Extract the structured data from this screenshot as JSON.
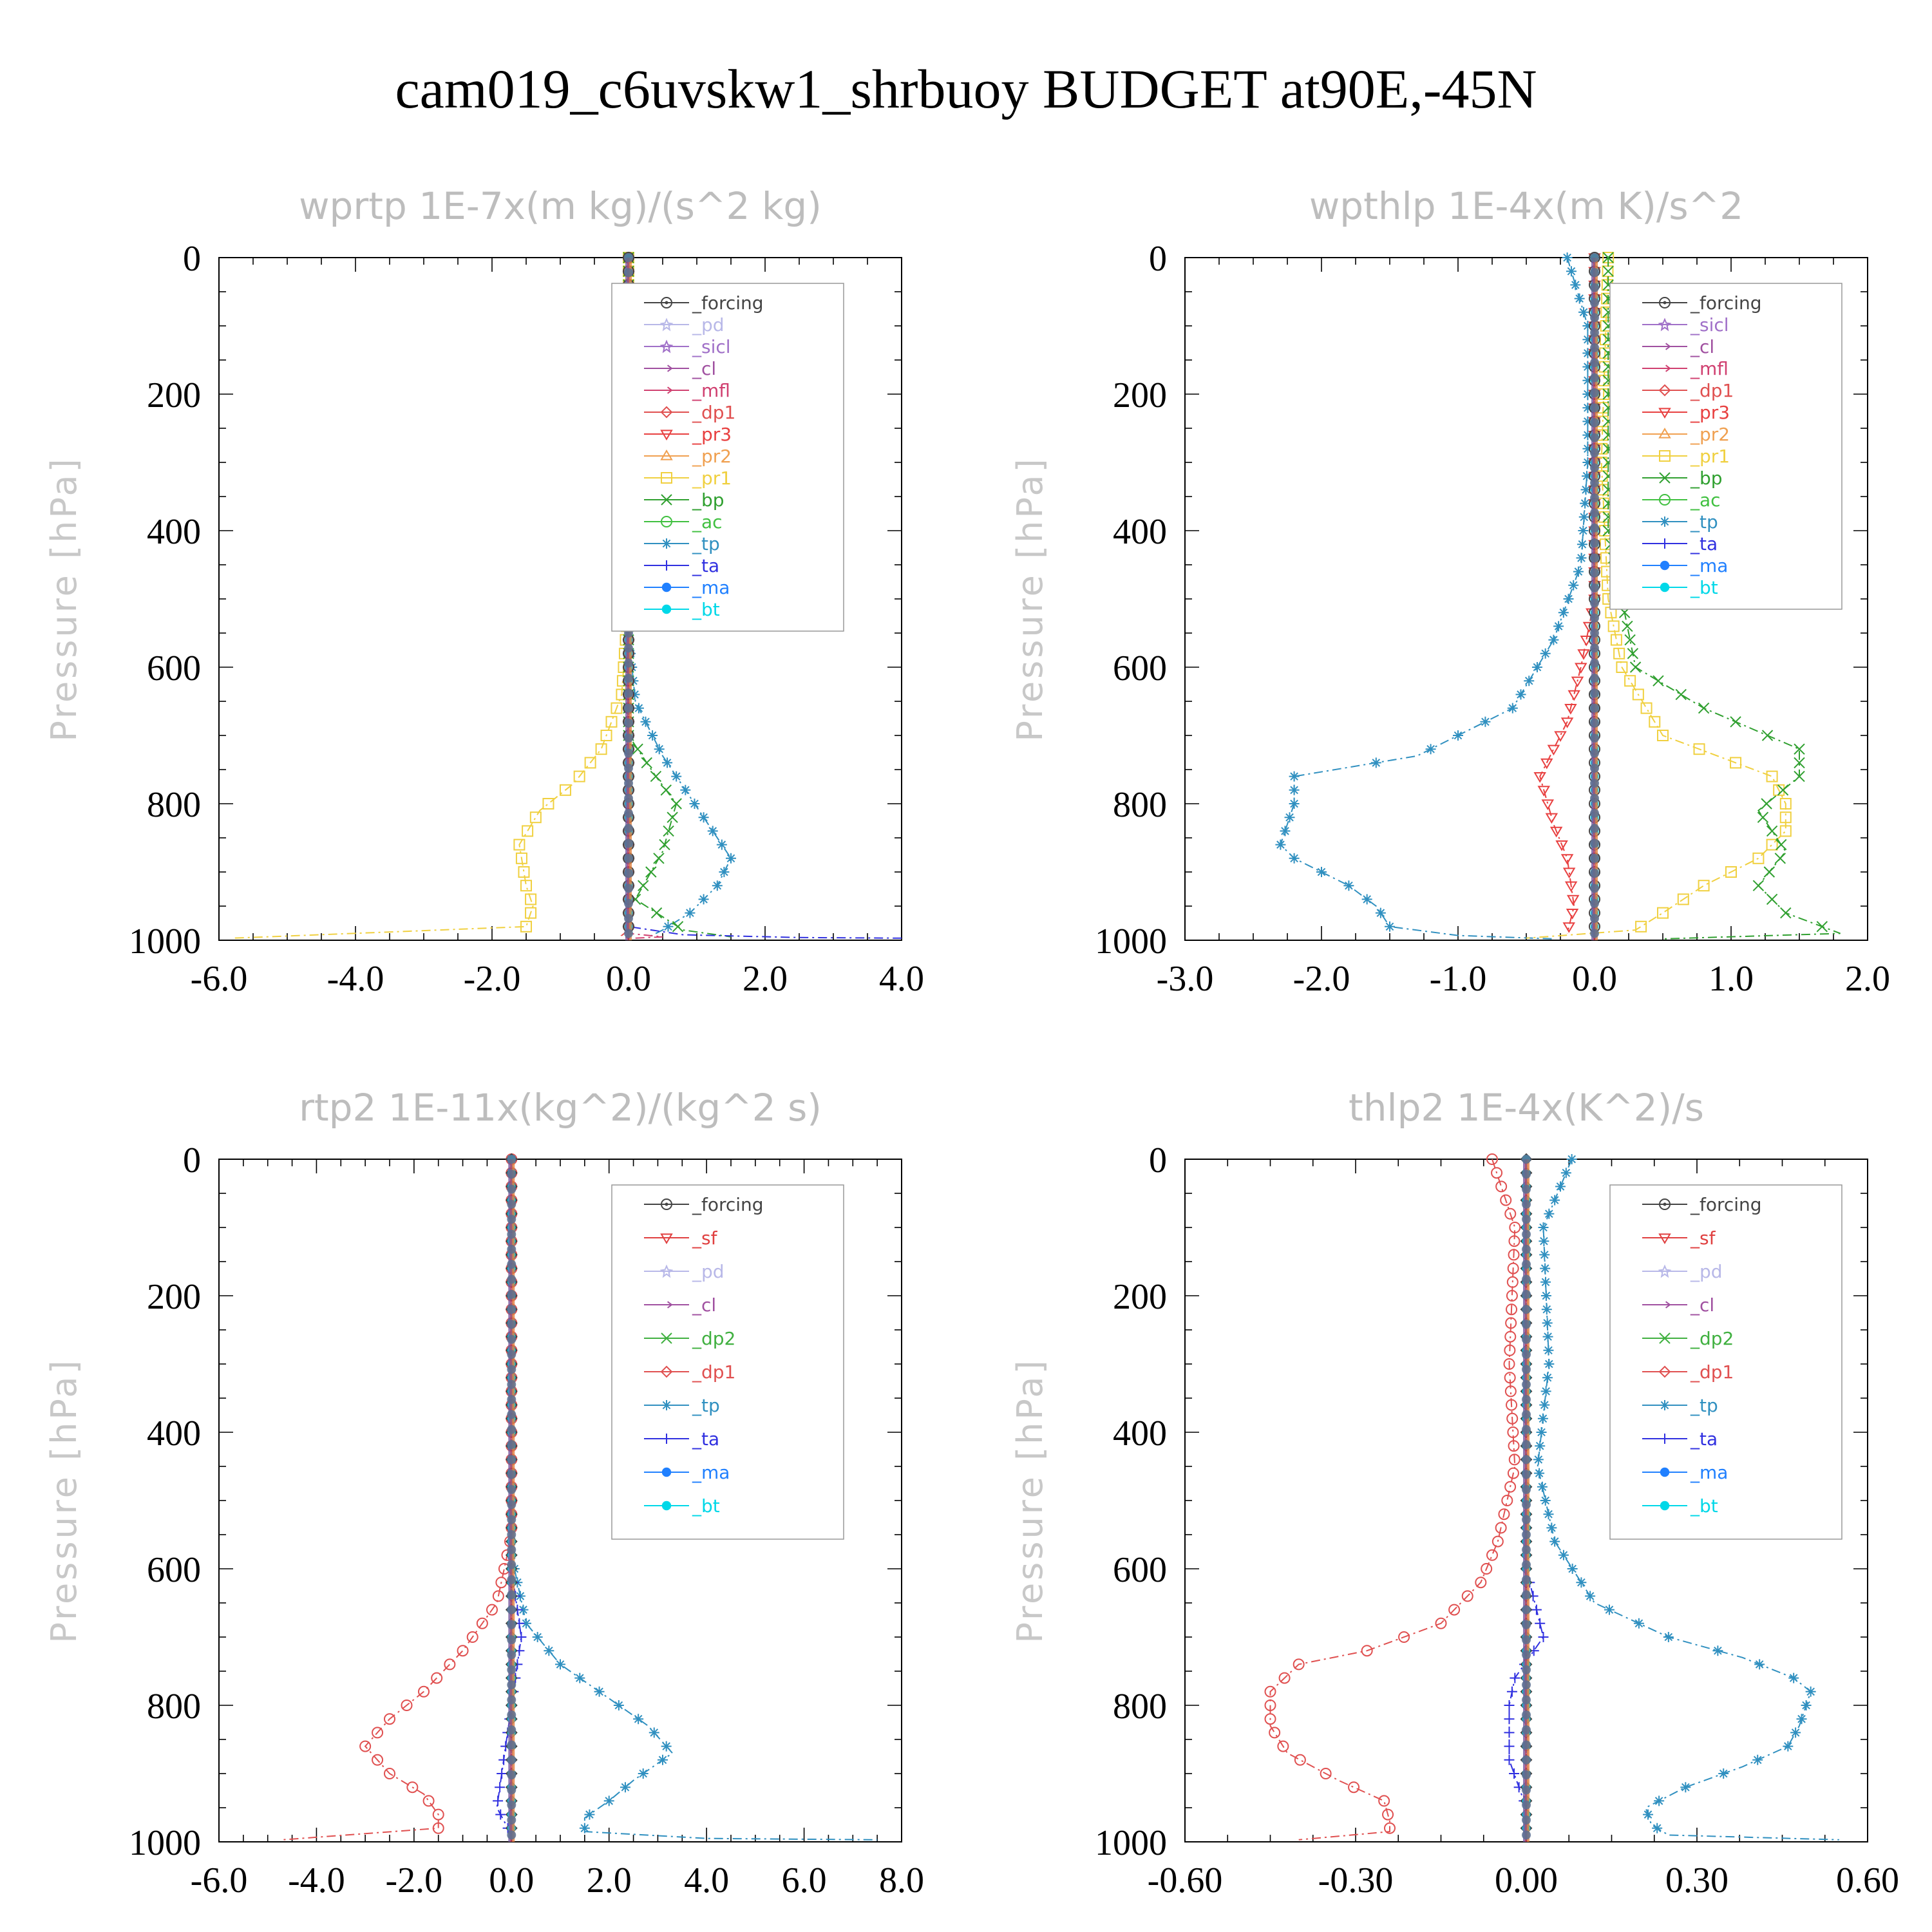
{
  "title": "cam019_c6uvskw1_shrbuoy  BUDGET at90E,-45N",
  "colors": {
    "_forcing": "#444444",
    "_pd": "#b8b8e8",
    "_sicl": "#a070c8",
    "_cl": "#a050a0",
    "_mfl": "#d04070",
    "_dp1": "#e05050",
    "_pr3": "#e84040",
    "_pr2": "#f0a050",
    "_pr1": "#f0d040",
    "_bp": "#30a030",
    "_ac": "#40c040",
    "_tp": "#3090c0",
    "_ta": "#3030e0",
    "_ma": "#2080ff",
    "_bt": "#00d8e8",
    "_sf": "#e04040",
    "_dp2": "#40b040"
  },
  "chart_data": [
    {
      "type": "line",
      "title": "wprtp  1E-7x(m kg)/(s^2 kg)",
      "xlabel": "",
      "ylabel": "Pressure [hPa]",
      "xlim": [
        -6.0,
        4.0
      ],
      "ylim": [
        1000,
        0
      ],
      "xticks": [
        "-6.0",
        "-4.0",
        "-2.0",
        "0.0",
        "2.0",
        "4.0"
      ],
      "yticks": [
        "0",
        "200",
        "400",
        "600",
        "800",
        "1000"
      ],
      "legend_position": "top-right",
      "legend": [
        "_forcing",
        "_pd",
        "_sicl",
        "_cl",
        "_mfl",
        "_dp1",
        "_pr3",
        "_pr2",
        "_pr1",
        "_bp",
        "_ac",
        "_tp",
        "_ta",
        "_ma",
        "_bt"
      ],
      "series": [
        {
          "name": "_pr1",
          "marker": "square",
          "points": [
            [
              0,
              0
            ],
            [
              0,
              500
            ],
            [
              -0.1,
              640
            ],
            [
              -0.4,
              720
            ],
            [
              -0.8,
              770
            ],
            [
              -1.3,
              810
            ],
            [
              -1.6,
              860
            ],
            [
              -1.5,
              920
            ],
            [
              -1.4,
              950
            ],
            [
              -1.5,
              980
            ],
            [
              -5.8,
              997
            ]
          ]
        },
        {
          "name": "_tp",
          "marker": "asterisk",
          "points": [
            [
              0,
              0
            ],
            [
              0,
              550
            ],
            [
              0.1,
              650
            ],
            [
              0.5,
              730
            ],
            [
              1.1,
              820
            ],
            [
              1.5,
              880
            ],
            [
              1.3,
              920
            ],
            [
              0.9,
              960
            ],
            [
              0.5,
              985
            ],
            [
              0.3,
              995
            ]
          ]
        },
        {
          "name": "_bp",
          "marker": "x",
          "points": [
            [
              0,
              0
            ],
            [
              0,
              700
            ],
            [
              0.4,
              760
            ],
            [
              0.7,
              800
            ],
            [
              0.5,
              870
            ],
            [
              0.1,
              940
            ],
            [
              0.8,
              985
            ],
            [
              1.5,
              995
            ]
          ]
        },
        {
          "name": "_ta",
          "marker": "plus",
          "points": [
            [
              0,
              0
            ],
            [
              0,
              980
            ],
            [
              0.8,
              992
            ],
            [
              2.5,
              996
            ],
            [
              4.0,
              997
            ]
          ]
        },
        {
          "name": "_mfl",
          "marker": "arrow",
          "points": [
            [
              0,
              0
            ],
            [
              0,
              990
            ],
            [
              0.5,
              995
            ],
            [
              0.1,
              997
            ]
          ]
        },
        {
          "name": "_dp1",
          "marker": "diamond",
          "points": [
            [
              0,
              0
            ],
            [
              0,
              985
            ],
            [
              -0.1,
              993
            ],
            [
              0,
              997
            ]
          ]
        },
        {
          "name": "_forcing",
          "marker": "circle-dot",
          "points": [
            [
              0,
              0
            ],
            [
              0,
              997
            ]
          ]
        },
        {
          "name": "_bt",
          "marker": "dot",
          "points": [
            [
              0,
              0
            ],
            [
              0,
              997
            ]
          ]
        }
      ]
    },
    {
      "type": "line",
      "title": "wpthlp  1E-4x(m K)/s^2",
      "xlabel": "",
      "ylabel": "Pressure [hPa]",
      "xlim": [
        -3.0,
        2.0
      ],
      "ylim": [
        1000,
        0
      ],
      "xticks": [
        "-3.0",
        "-2.0",
        "-1.0",
        "0.0",
        "1.0",
        "2.0"
      ],
      "yticks": [
        "0",
        "200",
        "400",
        "600",
        "800",
        "1000"
      ],
      "legend_position": "top-right",
      "legend": [
        "_forcing",
        "_sicl",
        "_cl",
        "_mfl",
        "_dp1",
        "_pr3",
        "_pr2",
        "_pr1",
        "_bp",
        "_ac",
        "_tp",
        "_ta",
        "_ma",
        "_bt"
      ],
      "series": [
        {
          "name": "_tp",
          "marker": "asterisk",
          "points": [
            [
              -0.2,
              0
            ],
            [
              -0.05,
              100
            ],
            [
              -0.05,
              300
            ],
            [
              -0.1,
              450
            ],
            [
              -0.3,
              560
            ],
            [
              -0.6,
              660
            ],
            [
              -1.3,
              730
            ],
            [
              -2.2,
              760
            ],
            [
              -2.2,
              800
            ],
            [
              -2.3,
              860
            ],
            [
              -2.2,
              880
            ],
            [
              -1.8,
              920
            ],
            [
              -1.6,
              950
            ],
            [
              -1.5,
              980
            ],
            [
              -1.0,
              993
            ],
            [
              -0.3,
              998
            ]
          ]
        },
        {
          "name": "_pr3",
          "marker": "triangle-down",
          "points": [
            [
              0,
              0
            ],
            [
              0,
              500
            ],
            [
              -0.1,
              600
            ],
            [
              -0.2,
              680
            ],
            [
              -0.4,
              760
            ],
            [
              -0.3,
              830
            ],
            [
              -0.2,
              880
            ],
            [
              -0.15,
              950
            ],
            [
              -0.2,
              990
            ]
          ]
        },
        {
          "name": "_pr1",
          "marker": "square",
          "points": [
            [
              0.1,
              0
            ],
            [
              0.05,
              300
            ],
            [
              0.1,
              500
            ],
            [
              0.2,
              600
            ],
            [
              0.5,
              700
            ],
            [
              1.3,
              760
            ],
            [
              1.4,
              800
            ],
            [
              1.4,
              840
            ],
            [
              1.2,
              880
            ],
            [
              0.8,
              920
            ],
            [
              0.5,
              960
            ],
            [
              0.3,
              985
            ],
            [
              -0.5,
              997
            ]
          ]
        },
        {
          "name": "_bp",
          "marker": "x",
          "points": [
            [
              0.1,
              0
            ],
            [
              0.1,
              400
            ],
            [
              0.3,
              600
            ],
            [
              0.8,
              660
            ],
            [
              1.5,
              720
            ],
            [
              1.5,
              760
            ],
            [
              1.2,
              810
            ],
            [
              1.4,
              870
            ],
            [
              1.2,
              920
            ],
            [
              1.4,
              960
            ],
            [
              1.8,
              990
            ],
            [
              0.5,
              998
            ]
          ]
        },
        {
          "name": "_forcing",
          "marker": "circle-dot",
          "points": [
            [
              0,
              0
            ],
            [
              0,
              997
            ]
          ]
        },
        {
          "name": "_bt",
          "marker": "dot",
          "points": [
            [
              0,
              0
            ],
            [
              0,
              997
            ]
          ]
        }
      ]
    },
    {
      "type": "line",
      "title": "rtp2  1E-11x(kg^2)/(kg^2 s)",
      "xlabel": "",
      "ylabel": "Pressure [hPa]",
      "xlim": [
        -6.0,
        8.0
      ],
      "ylim": [
        1000,
        0
      ],
      "xticks": [
        "-6.0",
        "-4.0",
        "-2.0",
        "0.0",
        "2.0",
        "4.0",
        "6.0",
        "8.0"
      ],
      "yticks": [
        "0",
        "200",
        "400",
        "600",
        "800",
        "1000"
      ],
      "legend_position": "top-right",
      "legend": [
        "_forcing",
        "_sf",
        "_pd",
        "_cl",
        "_dp2",
        "_dp1",
        "_tp",
        "_ta",
        "_ma",
        "_bt"
      ],
      "series": [
        {
          "name": "_dp1",
          "marker": "circle",
          "points": [
            [
              0,
              0
            ],
            [
              0,
              550
            ],
            [
              -0.3,
              650
            ],
            [
              -1.0,
              720
            ],
            [
              -1.8,
              780
            ],
            [
              -2.5,
              820
            ],
            [
              -3.0,
              860
            ],
            [
              -2.5,
              900
            ],
            [
              -1.8,
              930
            ],
            [
              -1.5,
              960
            ],
            [
              -1.5,
              980
            ],
            [
              -4.7,
              997
            ]
          ]
        },
        {
          "name": "_tp",
          "marker": "asterisk",
          "points": [
            [
              0,
              0
            ],
            [
              0,
              580
            ],
            [
              0.3,
              680
            ],
            [
              1.0,
              740
            ],
            [
              1.8,
              780
            ],
            [
              2.8,
              830
            ],
            [
              3.3,
              870
            ],
            [
              2.5,
              910
            ],
            [
              2.0,
              940
            ],
            [
              1.5,
              965
            ],
            [
              1.5,
              985
            ],
            [
              4.0,
              995
            ],
            [
              7.5,
              997
            ]
          ]
        },
        {
          "name": "_ta",
          "marker": "plus",
          "points": [
            [
              0,
              0
            ],
            [
              0,
              600
            ],
            [
              0.2,
              700
            ],
            [
              -0.2,
              900
            ],
            [
              -0.3,
              950
            ],
            [
              0,
              990
            ]
          ]
        },
        {
          "name": "_forcing",
          "marker": "diamond",
          "points": [
            [
              0,
              0
            ],
            [
              0,
              997
            ]
          ]
        },
        {
          "name": "_bt",
          "marker": "dot",
          "points": [
            [
              0,
              0
            ],
            [
              0,
              997
            ]
          ]
        }
      ]
    },
    {
      "type": "line",
      "title": "thlp2  1E-4x(K^2)/s",
      "xlabel": "",
      "ylabel": "Pressure [hPa]",
      "xlim": [
        -0.6,
        0.6
      ],
      "ylim": [
        1000,
        0
      ],
      "xticks": [
        "-0.60",
        "-0.30",
        "0.00",
        "0.30",
        "0.60"
      ],
      "yticks": [
        "0",
        "200",
        "400",
        "600",
        "800",
        "1000"
      ],
      "legend_position": "top-right",
      "legend": [
        "_forcing",
        "_sf",
        "_pd",
        "_cl",
        "_dp2",
        "_dp1",
        "_tp",
        "_ta",
        "_ma",
        "_bt"
      ],
      "series": [
        {
          "name": "_dp1",
          "marker": "circle",
          "points": [
            [
              -0.06,
              0
            ],
            [
              -0.02,
              100
            ],
            [
              -0.03,
              300
            ],
            [
              -0.02,
              450
            ],
            [
              -0.05,
              560
            ],
            [
              -0.08,
              620
            ],
            [
              -0.15,
              680
            ],
            [
              -0.28,
              720
            ],
            [
              -0.4,
              740
            ],
            [
              -0.45,
              780
            ],
            [
              -0.45,
              830
            ],
            [
              -0.42,
              870
            ],
            [
              -0.33,
              910
            ],
            [
              -0.25,
              940
            ],
            [
              -0.24,
              970
            ],
            [
              -0.24,
              985
            ],
            [
              -0.4,
              997
            ]
          ]
        },
        {
          "name": "_tp",
          "marker": "asterisk",
          "points": [
            [
              0.08,
              0
            ],
            [
              0.03,
              100
            ],
            [
              0.04,
              300
            ],
            [
              0.02,
              450
            ],
            [
              0.05,
              560
            ],
            [
              0.12,
              650
            ],
            [
              0.25,
              700
            ],
            [
              0.38,
              730
            ],
            [
              0.47,
              760
            ],
            [
              0.5,
              780
            ],
            [
              0.48,
              830
            ],
            [
              0.46,
              860
            ],
            [
              0.38,
              890
            ],
            [
              0.28,
              920
            ],
            [
              0.21,
              950
            ],
            [
              0.22,
              975
            ],
            [
              0.25,
              990
            ],
            [
              0.55,
              997
            ]
          ]
        },
        {
          "name": "_ta",
          "marker": "plus",
          "points": [
            [
              0,
              0
            ],
            [
              0,
              600
            ],
            [
              0.03,
              700
            ],
            [
              -0.02,
              760
            ],
            [
              -0.03,
              800
            ],
            [
              -0.03,
              880
            ],
            [
              0,
              950
            ],
            [
              0,
              997
            ]
          ]
        },
        {
          "name": "_forcing",
          "marker": "diamond",
          "points": [
            [
              0,
              0
            ],
            [
              0,
              997
            ]
          ]
        },
        {
          "name": "_bt",
          "marker": "dot",
          "points": [
            [
              0,
              0
            ],
            [
              0,
              997
            ]
          ]
        }
      ]
    }
  ]
}
